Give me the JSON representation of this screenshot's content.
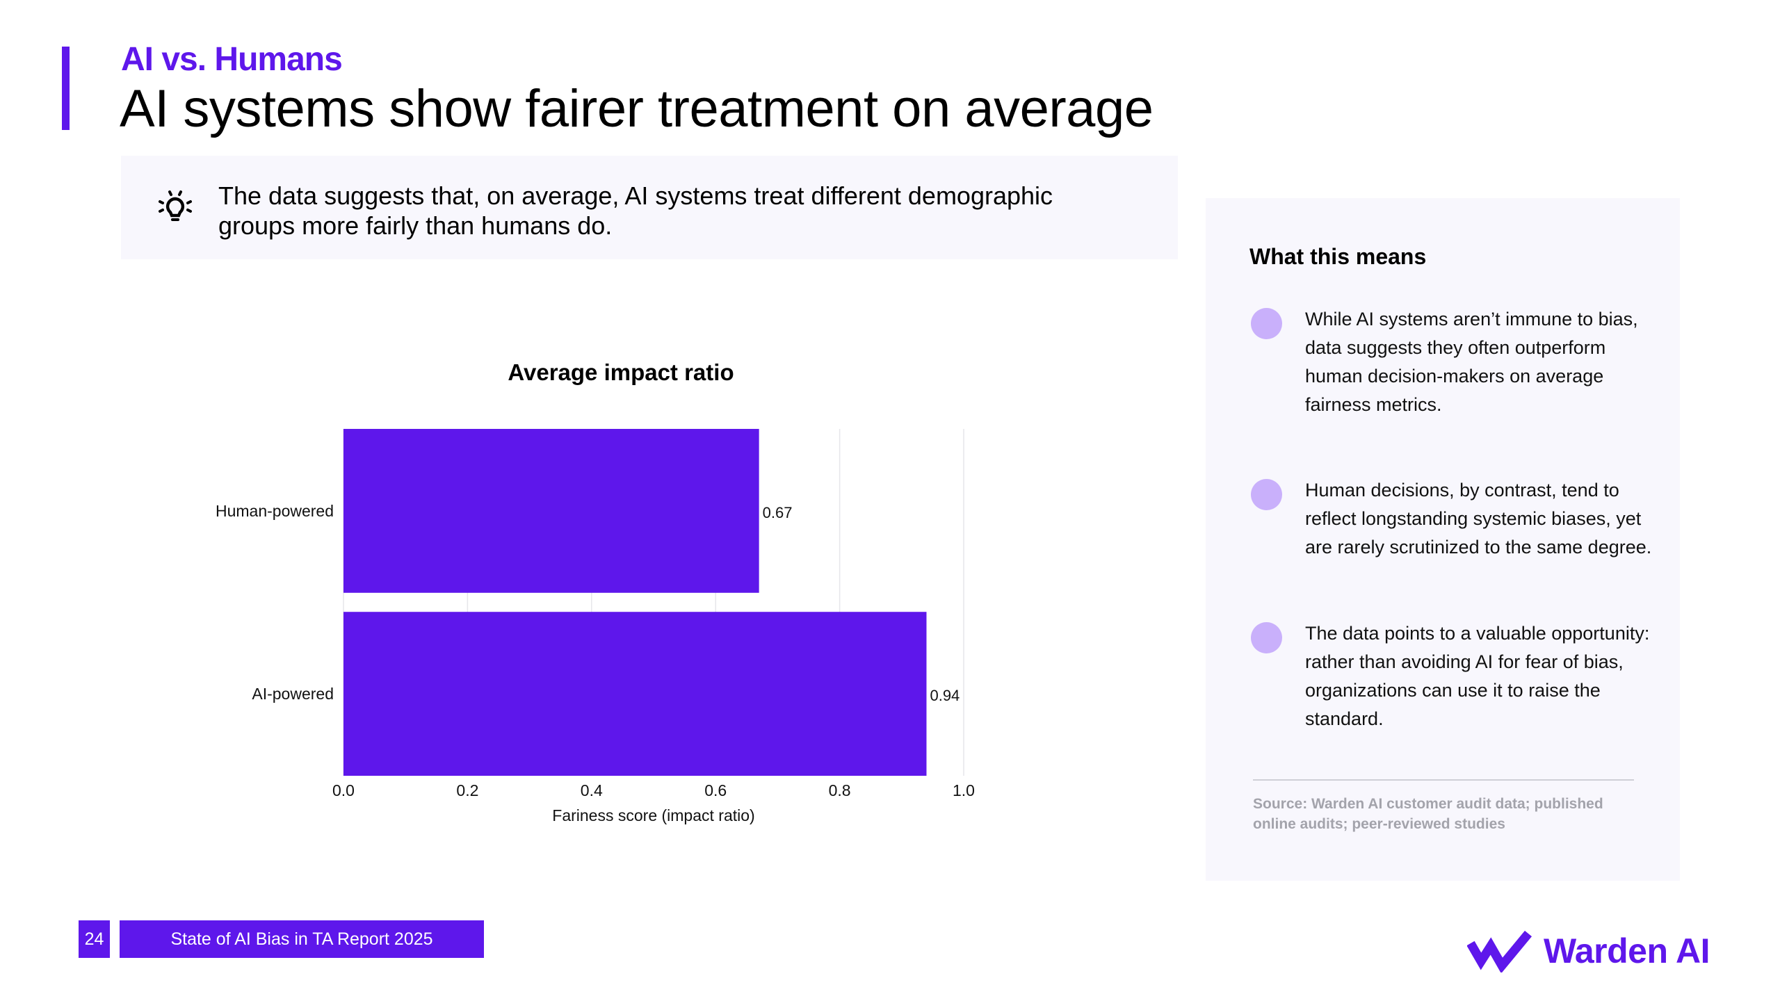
{
  "header": {
    "kicker": "AI vs. Humans",
    "title": "AI systems show fairer treatment on average"
  },
  "callout": {
    "icon": "lightbulb-icon",
    "text": "The data suggests that, on average, AI systems treat different demographic groups more fairly than humans do."
  },
  "chart_data": {
    "type": "bar",
    "orientation": "horizontal",
    "title": "Average impact ratio",
    "categories": [
      "Human-powered",
      "AI-powered"
    ],
    "values": [
      0.67,
      0.94
    ],
    "value_labels": [
      "0.67",
      "0.94"
    ],
    "xlabel": "Fariness score (impact ratio)",
    "ylabel": "",
    "xlim": [
      0.0,
      1.0
    ],
    "xticks": [
      "0.0",
      "0.2",
      "0.4",
      "0.6",
      "0.8",
      "1.0"
    ],
    "grid": true,
    "legend": "none",
    "bar_color": "#5e17eb"
  },
  "panel": {
    "heading": "What this means",
    "bullets": [
      "While AI systems aren’t immune to bias, data suggests they often outperform human decision-makers on average fairness metrics.",
      "Human decisions, by contrast, tend to reflect longstanding systemic biases, yet are rarely scrutinized to the same degree.",
      "The data points to a valuable opportunity: rather than avoiding AI for fear of bias, organizations can use it to raise the standard."
    ],
    "source": "Source: Warden AI customer audit data; published online audits; peer-reviewed studies"
  },
  "footer": {
    "page_number": "24",
    "report_label": "State of AI Bias in TA Report 2025",
    "logo_text": "Warden AI"
  },
  "colors": {
    "brand": "#5e17eb",
    "bullet_dot": "#c9b0fb",
    "panel_bg": "#f8f7fd"
  }
}
